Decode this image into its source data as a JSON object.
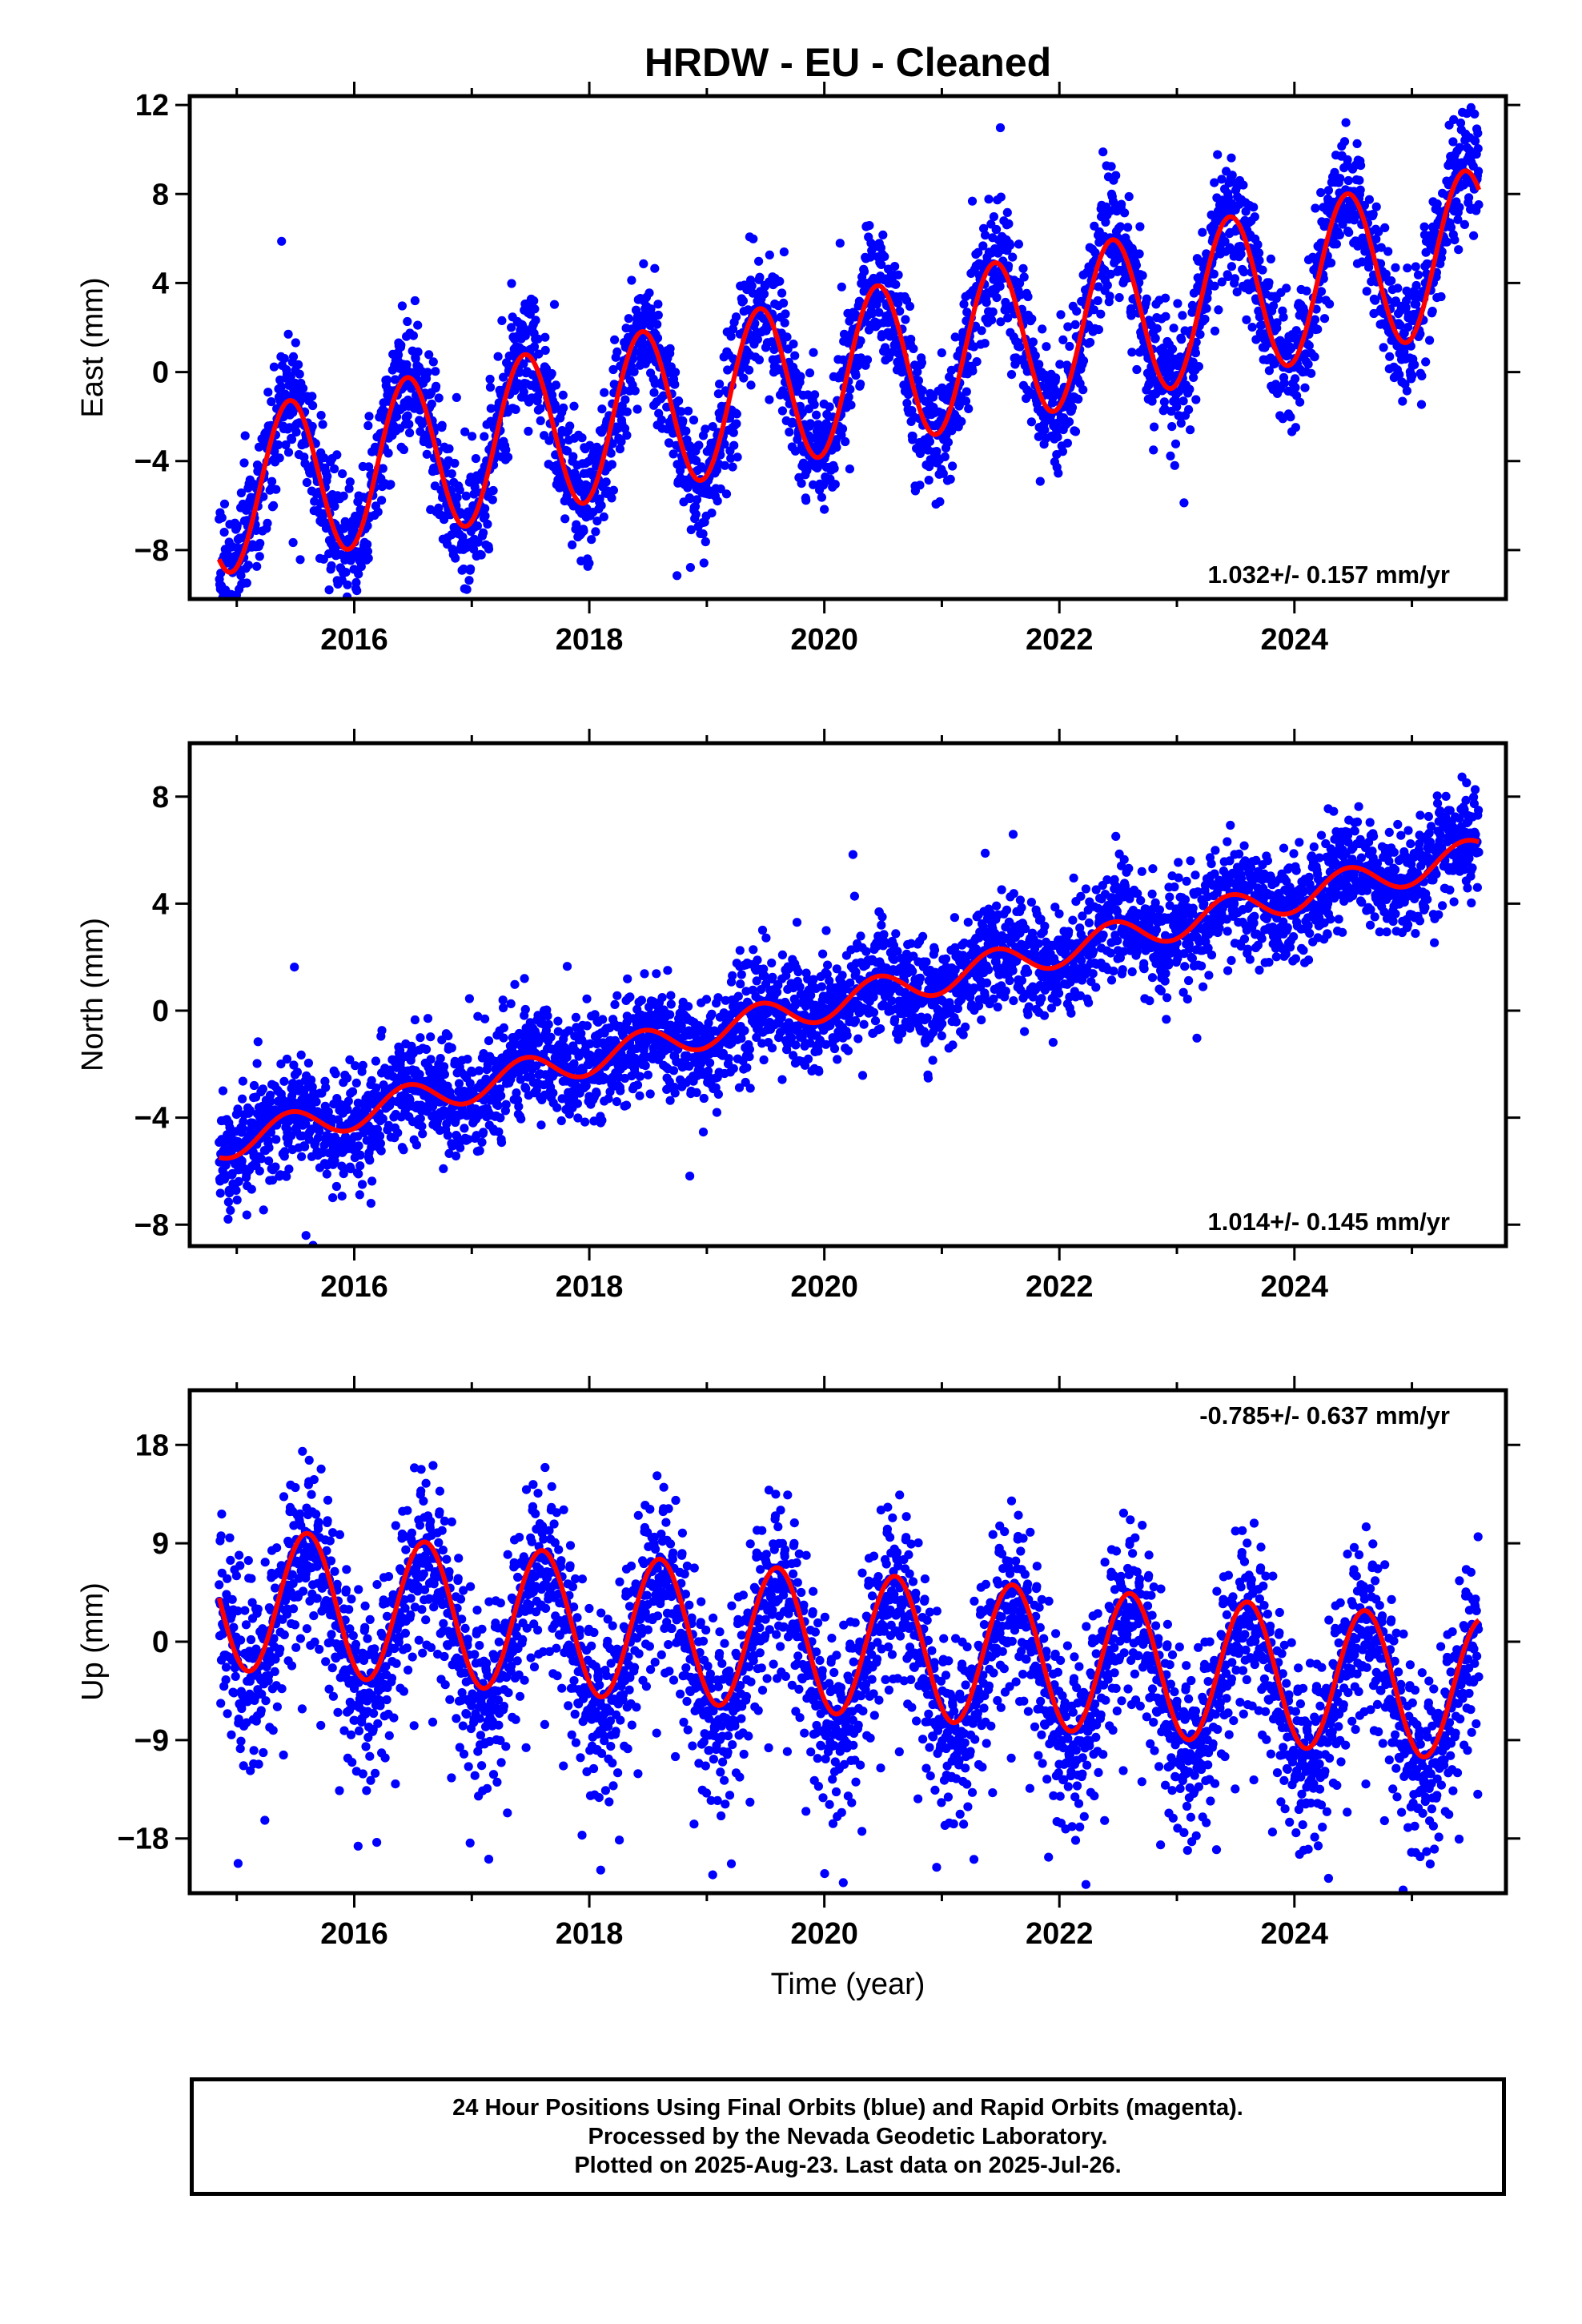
{
  "title": "HRDW  - EU - Cleaned",
  "xlabel": "Time (year)",
  "footer": {
    "line1": "24 Hour Positions Using Final Orbits (blue) and Rapid Orbits (magenta).",
    "line2": "Processed by the Nevada Geodetic Laboratory.",
    "line3": "Plotted on 2025-Aug-23. Last data on 2025-Jul-26."
  },
  "colors": {
    "data": "#0000ff",
    "model": "#ff0000",
    "axes": "#000000"
  },
  "chart_data": [
    {
      "type": "scatter",
      "name": "east",
      "ylabel": "East (mm)",
      "rate_label": "1.032+/- 0.157 mm/yr",
      "xlim": [
        2014.6,
        2025.8
      ],
      "ylim": [
        -10.2,
        12.4
      ],
      "x_ticks": [
        2016,
        2018,
        2020,
        2022,
        2024
      ],
      "x_tick_labels": [
        "2016",
        "2018",
        "2020",
        "2022",
        "2024"
      ],
      "y_ticks": [
        -8,
        -4,
        0,
        4,
        8,
        12
      ],
      "y_tick_labels": [
        "−8",
        "−4",
        "0",
        "4",
        "8",
        "12"
      ],
      "model": {
        "offset": -5.5,
        "rate": 1.032,
        "annual_amplitude": 3.6,
        "peak_phase": 0.45,
        "t0": 2014.85
      },
      "noise_sd": 1.4,
      "x_range": [
        2014.85,
        2025.57
      ]
    },
    {
      "type": "scatter",
      "name": "north",
      "ylabel": "North (mm)",
      "rate_label": "1.014+/- 0.145 mm/yr",
      "xlim": [
        2014.6,
        2025.8
      ],
      "ylim": [
        -8.8,
        10.0
      ],
      "x_ticks": [
        2016,
        2018,
        2020,
        2022,
        2024
      ],
      "x_tick_labels": [
        "2016",
        "2018",
        "2020",
        "2022",
        "2024"
      ],
      "y_ticks": [
        -8,
        -4,
        0,
        4,
        8
      ],
      "y_tick_labels": [
        "−8",
        "−4",
        "0",
        "4",
        "8"
      ],
      "model": {
        "offset": -5.0,
        "rate": 1.014,
        "annual_amplitude": 0.6,
        "peak_phase": 0.45,
        "t0": 2014.85
      },
      "noise_sd": 1.0,
      "x_range": [
        2014.85,
        2025.57
      ]
    },
    {
      "type": "scatter",
      "name": "up",
      "ylabel": "Up (mm)",
      "rate_label": "-0.785+/- 0.637 mm/yr",
      "xlim": [
        2014.6,
        2025.8
      ],
      "ylim": [
        -23.0,
        23.0
      ],
      "x_ticks": [
        2016,
        2018,
        2020,
        2022,
        2024
      ],
      "x_tick_labels": [
        "2016",
        "2018",
        "2020",
        "2022",
        "2024"
      ],
      "y_ticks": [
        -18,
        -9,
        0,
        9,
        18
      ],
      "y_tick_labels": [
        "−18",
        "−9",
        "0",
        "9",
        "18"
      ],
      "model": {
        "offset": 4.0,
        "rate": -0.785,
        "annual_amplitude": 6.5,
        "peak_phase": 0.6,
        "t0": 2014.85
      },
      "noise_sd": 4.0,
      "x_range": [
        2014.85,
        2025.57
      ]
    }
  ]
}
